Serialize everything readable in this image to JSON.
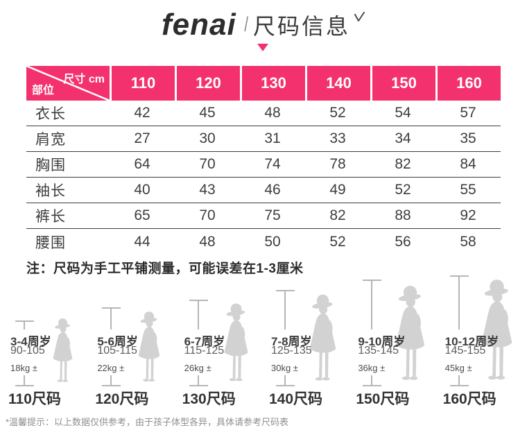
{
  "brand": {
    "logo": "fenai",
    "separator": "/",
    "title": "尺码信息",
    "accent_color": "#F4316F"
  },
  "size_table": {
    "corner": {
      "top_right": "尺寸 cm",
      "bottom_left": "部位"
    },
    "columns": [
      "110",
      "120",
      "130",
      "140",
      "150",
      "160"
    ],
    "rows": [
      {
        "label": "衣长",
        "values": [
          "42",
          "45",
          "48",
          "52",
          "54",
          "57"
        ]
      },
      {
        "label": "肩宽",
        "values": [
          "27",
          "30",
          "31",
          "33",
          "34",
          "35"
        ]
      },
      {
        "label": "胸围",
        "values": [
          "64",
          "70",
          "74",
          "78",
          "82",
          "84"
        ]
      },
      {
        "label": "袖长",
        "values": [
          "40",
          "43",
          "46",
          "49",
          "52",
          "55"
        ]
      },
      {
        "label": "裤长",
        "values": [
          "65",
          "70",
          "75",
          "82",
          "88",
          "92"
        ]
      },
      {
        "label": "腰围",
        "values": [
          "44",
          "48",
          "50",
          "52",
          "56",
          "58"
        ]
      }
    ]
  },
  "note": "注：尺码为手工平铺测量，可能误差在1-3厘米",
  "size_guide": {
    "groups": [
      {
        "age": "3-4周岁",
        "height_range": "90-105",
        "weight": "18kg ±",
        "size_label": "110尺码"
      },
      {
        "age": "5-6周岁",
        "height_range": "105-115",
        "weight": "22kg ±",
        "size_label": "120尺码"
      },
      {
        "age": "6-7周岁",
        "height_range": "115-125",
        "weight": "26kg ±",
        "size_label": "130尺码"
      },
      {
        "age": "7-8周岁",
        "height_range": "125-135",
        "weight": "30kg ±",
        "size_label": "140尺码"
      },
      {
        "age": "9-10周岁",
        "height_range": "135-145",
        "weight": "36kg ±",
        "size_label": "150尺码"
      },
      {
        "age": "10-12周岁",
        "height_range": "145-155",
        "weight": "45kg ±",
        "size_label": "160尺码"
      }
    ]
  },
  "footer": "*温馨提示：以上数据仅供参考，由于孩子体型各异，具体请参考尺码表"
}
